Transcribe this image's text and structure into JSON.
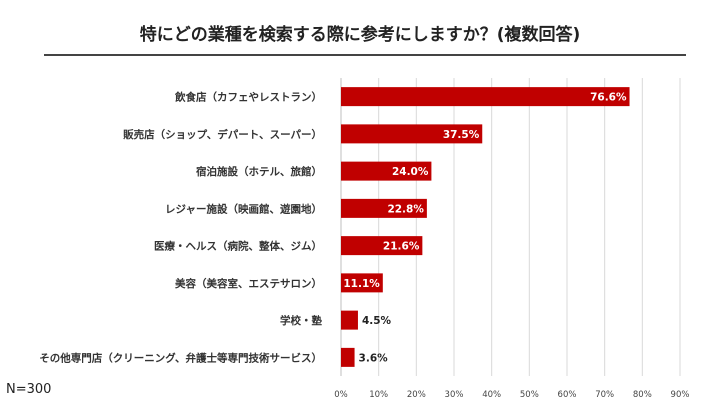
{
  "header": {
    "title": "特にどの業種を検索する際に参考にしますか？(複数回答)",
    "sample_size": "N=300"
  },
  "colors": {
    "bar": "#c00000",
    "label_inside": "#ffffff",
    "label_outside": "#222222",
    "grid": "#d9d9d9"
  },
  "chart_data": {
    "type": "bar",
    "orientation": "horizontal",
    "title": "特にどの業種を検索する際に参考にしますか？(複数回答)",
    "xlabel": "",
    "ylabel": "",
    "xlim": [
      0,
      90
    ],
    "x_ticks": [
      0,
      10,
      20,
      30,
      40,
      50,
      60,
      70,
      80,
      90
    ],
    "tick_suffix": "%",
    "grid": "vertical",
    "categories": [
      "飲食店（カフェやレストラン）",
      "販売店（ショップ、デパート、スーパー）",
      "宿泊施設（ホテル、旅館）",
      "レジャー施設（映画館、遊園地）",
      "医療・ヘルス（病院、整体、ジム）",
      "美容（美容室、エステサロン）",
      "学校・塾",
      "その他専門店（クリーニング、弁護士等専門技術サービス）"
    ],
    "values": [
      76.6,
      37.5,
      24.0,
      22.8,
      21.6,
      11.1,
      4.5,
      3.6
    ],
    "labels": [
      "76.6%",
      "37.5%",
      "24.0%",
      "22.8%",
      "21.6%",
      "11.1%",
      "4.5%",
      "3.6%"
    ]
  }
}
